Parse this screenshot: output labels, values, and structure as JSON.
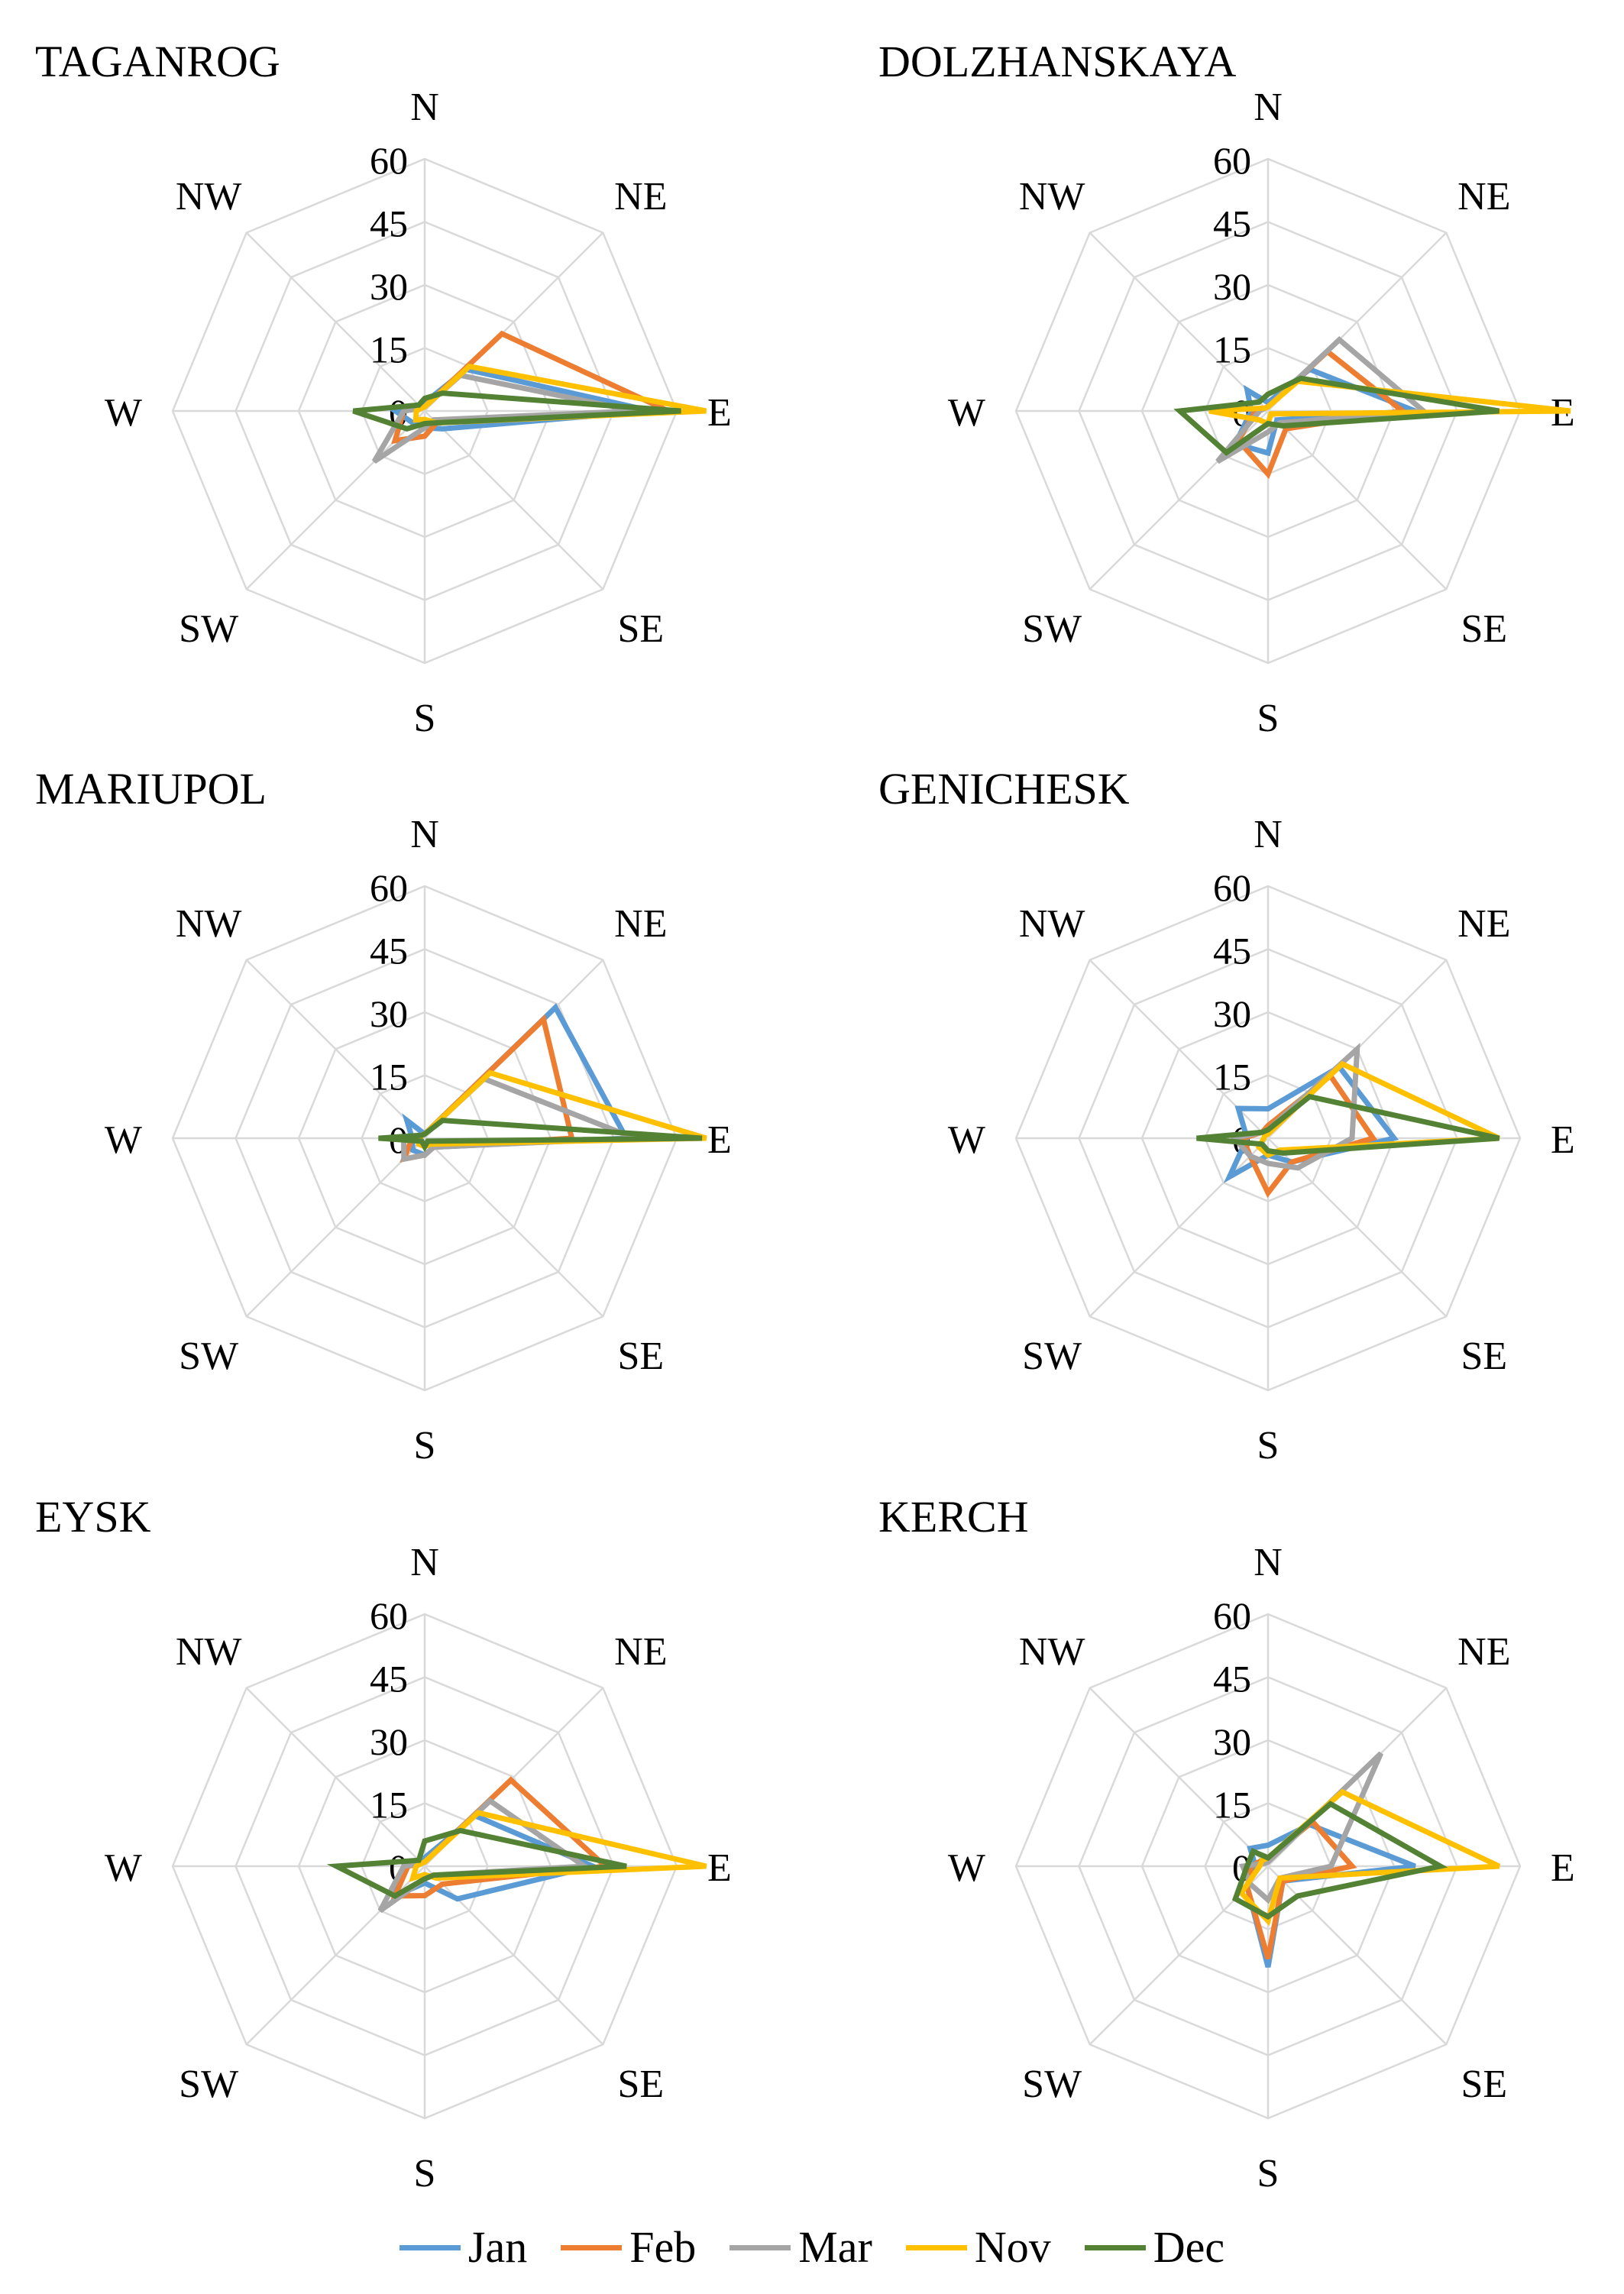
{
  "chart_data": [
    {
      "type": "radar",
      "title": "TAGANROG",
      "directions": [
        "N",
        "NE",
        "E",
        "SE",
        "S",
        "SW",
        "W",
        "NW"
      ],
      "ticks": [
        0,
        15,
        30,
        45,
        60
      ],
      "rlim": [
        0,
        60
      ],
      "series": [
        {
          "name": "Jan",
          "values": [
            2,
            14,
            54,
            6,
            4,
            4,
            7,
            2
          ]
        },
        {
          "name": "Feb",
          "values": [
            1,
            26,
            58,
            4,
            6,
            10,
            5,
            1
          ]
        },
        {
          "name": "Mar",
          "values": [
            1,
            12,
            50,
            3,
            4,
            17,
            5,
            1
          ]
        },
        {
          "name": "Nov",
          "values": [
            1,
            15,
            67,
            4,
            2,
            3,
            2,
            1
          ]
        },
        {
          "name": "Dec",
          "values": [
            3,
            6,
            61,
            4,
            3,
            6,
            17,
            2
          ]
        }
      ]
    },
    {
      "type": "radar",
      "title": "DOLZHANSKAYA",
      "directions": [
        "N",
        "NE",
        "E",
        "SE",
        "S",
        "SW",
        "W",
        "NW"
      ],
      "ticks": [
        0,
        15,
        30,
        45,
        60
      ],
      "rlim": [
        0,
        60
      ],
      "series": [
        {
          "name": "Jan",
          "values": [
            2,
            14,
            35,
            3,
            10,
            11,
            4,
            7
          ]
        },
        {
          "name": "Feb",
          "values": [
            1,
            20,
            32,
            6,
            15,
            10,
            3,
            1
          ]
        },
        {
          "name": "Mar",
          "values": [
            1,
            24,
            37,
            4,
            5,
            17,
            2,
            1
          ]
        },
        {
          "name": "Nov",
          "values": [
            1,
            10,
            72,
            1,
            3,
            3,
            14,
            1
          ]
        },
        {
          "name": "Dec",
          "values": [
            4,
            11,
            55,
            5,
            3,
            14,
            21,
            3
          ]
        }
      ]
    },
    {
      "type": "radar",
      "title": "MARIUPOL",
      "directions": [
        "N",
        "NE",
        "E",
        "SE",
        "S",
        "SW",
        "W",
        "NW"
      ],
      "ticks": [
        0,
        15,
        30,
        45,
        60
      ],
      "rlim": [
        0,
        60
      ],
      "series": [
        {
          "name": "Jan",
          "values": [
            1,
            44,
            48,
            3,
            4,
            4,
            3,
            6
          ]
        },
        {
          "name": "Feb",
          "values": [
            1,
            40,
            35,
            3,
            4,
            7,
            3,
            1
          ]
        },
        {
          "name": "Mar",
          "values": [
            1,
            20,
            50,
            3,
            4,
            7,
            5,
            1
          ]
        },
        {
          "name": "Nov",
          "values": [
            1,
            22,
            67,
            2,
            2,
            2,
            1,
            1
          ]
        },
        {
          "name": "Dec",
          "values": [
            1,
            6,
            66,
            1,
            2,
            1,
            11,
            1
          ]
        }
      ]
    },
    {
      "type": "radar",
      "title": "GENICHESK",
      "directions": [
        "N",
        "NE",
        "E",
        "SE",
        "S",
        "SW",
        "W",
        "NW"
      ],
      "ticks": [
        0,
        15,
        30,
        45,
        60
      ],
      "rlim": [
        0,
        60
      ],
      "series": [
        {
          "name": "Jan",
          "values": [
            7,
            24,
            30,
            8,
            4,
            13,
            5,
            10
          ]
        },
        {
          "name": "Feb",
          "values": [
            3,
            21,
            25,
            8,
            13,
            6,
            6,
            2
          ]
        },
        {
          "name": "Mar",
          "values": [
            2,
            30,
            20,
            10,
            6,
            6,
            8,
            2
          ]
        },
        {
          "name": "Nov",
          "values": [
            1,
            25,
            55,
            4,
            4,
            3,
            1,
            1
          ]
        },
        {
          "name": "Dec",
          "values": [
            2,
            14,
            55,
            5,
            3,
            2,
            17,
            2
          ]
        }
      ]
    },
    {
      "type": "radar",
      "title": "EYSK",
      "directions": [
        "N",
        "NE",
        "E",
        "SE",
        "S",
        "SW",
        "W",
        "NW"
      ],
      "ticks": [
        0,
        15,
        30,
        45,
        60
      ],
      "rlim": [
        0,
        60
      ],
      "series": [
        {
          "name": "Jan",
          "values": [
            2,
            17,
            40,
            11,
            4,
            10,
            5,
            2
          ]
        },
        {
          "name": "Feb",
          "values": [
            1,
            29,
            43,
            6,
            7,
            10,
            4,
            1
          ]
        },
        {
          "name": "Mar",
          "values": [
            1,
            22,
            38,
            3,
            3,
            15,
            5,
            1
          ]
        },
        {
          "name": "Nov",
          "values": [
            1,
            18,
            67,
            4,
            2,
            4,
            2,
            1
          ]
        },
        {
          "name": "Dec",
          "values": [
            6,
            12,
            48,
            3,
            3,
            10,
            21,
            2
          ]
        }
      ]
    },
    {
      "type": "radar",
      "title": "KERCH",
      "directions": [
        "N",
        "NE",
        "E",
        "SE",
        "S",
        "SW",
        "W",
        "NW"
      ],
      "ticks": [
        0,
        15,
        30,
        45,
        60
      ],
      "rlim": [
        0,
        60
      ],
      "series": [
        {
          "name": "Jan",
          "values": [
            5,
            14,
            35,
            5,
            24,
            7,
            3,
            6
          ]
        },
        {
          "name": "Feb",
          "values": [
            2,
            15,
            20,
            5,
            22,
            7,
            4,
            2
          ]
        },
        {
          "name": "Mar",
          "values": [
            1,
            38,
            15,
            4,
            8,
            6,
            6,
            1
          ]
        },
        {
          "name": "Nov",
          "values": [
            2,
            25,
            55,
            4,
            13,
            9,
            2,
            2
          ]
        },
        {
          "name": "Dec",
          "values": [
            2,
            21,
            41,
            10,
            12,
            11,
            5,
            5
          ]
        }
      ]
    }
  ],
  "legend": [
    {
      "label": "Jan",
      "color": "#5B9BD5"
    },
    {
      "label": "Feb",
      "color": "#ED7D31"
    },
    {
      "label": "Mar",
      "color": "#A5A5A5"
    },
    {
      "label": "Nov",
      "color": "#FFC000"
    },
    {
      "label": "Dec",
      "color": "#548235"
    }
  ],
  "grid_color": "#d9d9d9"
}
